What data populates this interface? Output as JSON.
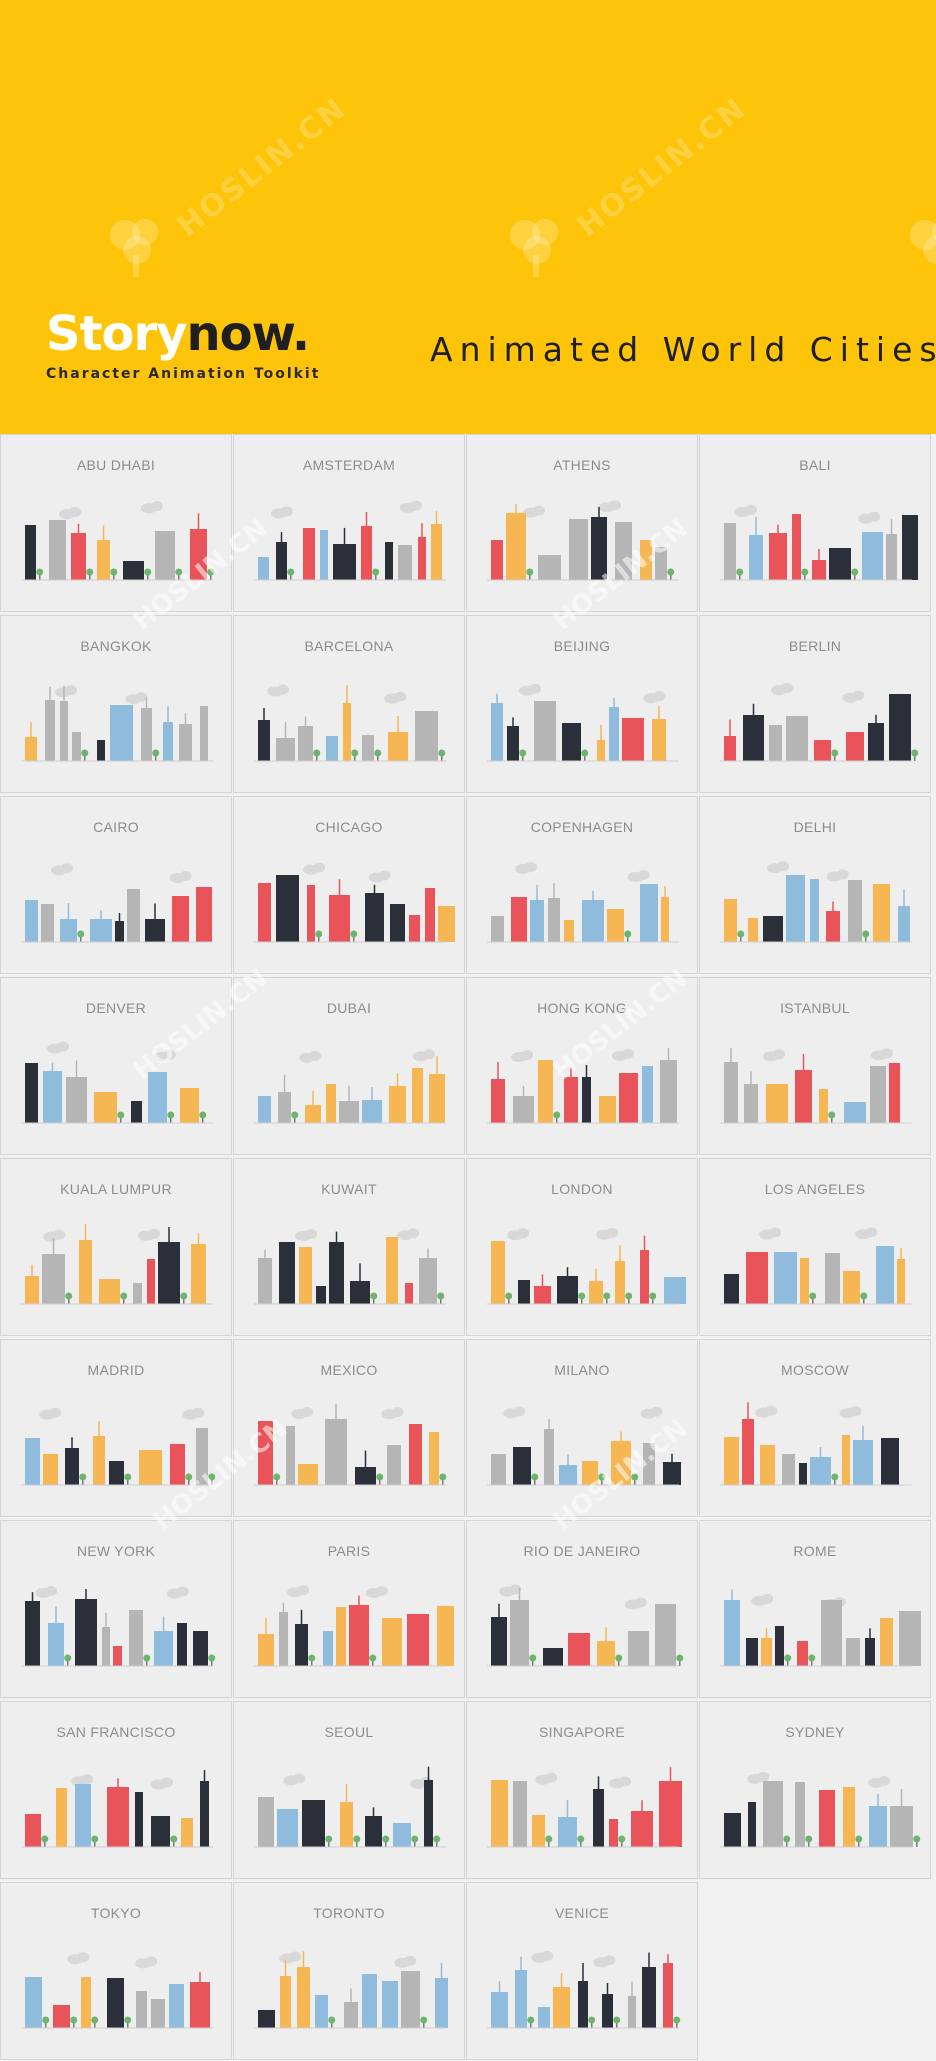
{
  "header": {
    "brand_part1": "Story",
    "brand_part2": "now.",
    "brand_subtitle": "Character Animation Toolkit",
    "title": "Animated World Cities",
    "watermark": "HOSLIN.CN"
  },
  "colors": {
    "header_bg": "#fec40a",
    "grid_bg": "#eeeeee",
    "label": "#8c8c8c",
    "palette": [
      "#2b2f3a",
      "#e8545a",
      "#f6b654",
      "#8fbbdd",
      "#b5b5b5",
      "#6db56d"
    ]
  },
  "cities": [
    "ABU DHABI",
    "AMSTERDAM",
    "ATHENS",
    "BALI",
    "BANGKOK",
    "BARCELONA",
    "BEIJING",
    "BERLIN",
    "CAIRO",
    "CHICAGO",
    "COPENHAGEN",
    "DELHI",
    "DENVER",
    "DUBAI",
    "HONG KONG",
    "ISTANBUL",
    "KUALA LUMPUR",
    "KUWAIT",
    "LONDON",
    "LOS ANGELES",
    "MADRID",
    "MEXICO",
    "MILANO",
    "MOSCOW",
    "NEW YORK",
    "PARIS",
    "RIO DE JANEIRO",
    "ROME",
    "SAN FRANCISCO",
    "SEOUL",
    "SINGAPORE",
    "SYDNEY",
    "TOKYO",
    "TORONTO",
    "VENICE"
  ]
}
